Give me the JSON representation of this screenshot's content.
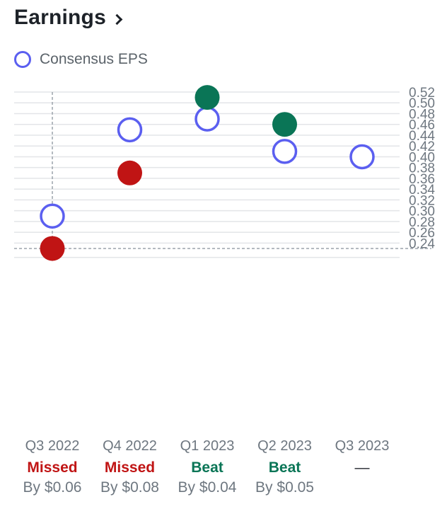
{
  "header": {
    "title": "Earnings"
  },
  "legend": {
    "label": "Consensus EPS",
    "icon": "hollow-circle-icon"
  },
  "colors": {
    "consensus": "#5b5ff0",
    "beat": "#0a7556",
    "missed": "#c01414",
    "grid": "#e3e5e8",
    "axis_text": "#6e7780",
    "crosshair": "#9ca3ab"
  },
  "chart_data": {
    "type": "scatter",
    "categories": [
      "Q3 2022",
      "Q4 2022",
      "Q1 2023",
      "Q2 2023",
      "Q3 2023"
    ],
    "series": [
      {
        "name": "Consensus EPS",
        "values": [
          0.29,
          0.45,
          0.47,
          0.41,
          0.4
        ]
      },
      {
        "values": [
          0.23,
          0.37,
          0.51,
          0.46,
          null
        ]
      }
    ],
    "results": [
      "Missed",
      "Missed",
      "Beat",
      "Beat",
      "—"
    ],
    "result_types": [
      "missed",
      "missed",
      "beat",
      "beat",
      "none"
    ],
    "surprise": [
      "By $0.06",
      "By $0.08",
      "By $0.04",
      "By $0.05",
      ""
    ],
    "ylim": [
      0.22,
      0.52
    ],
    "yticks": [
      0.52,
      0.5,
      0.48,
      0.46,
      0.44,
      0.42,
      0.4,
      0.38,
      0.36,
      0.34,
      0.32,
      0.3,
      0.28,
      0.26,
      0.24
    ],
    "crosshair": {
      "category": "Q3 2022",
      "value": 0.23
    },
    "grid": true
  }
}
